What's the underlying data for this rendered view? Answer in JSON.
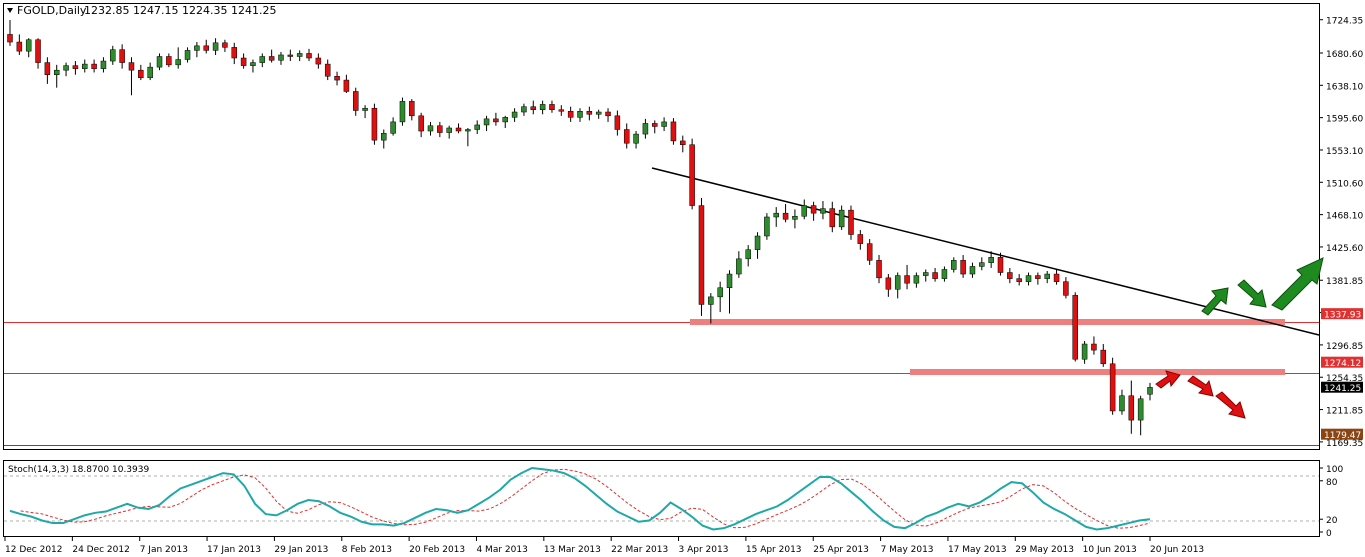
{
  "chart_data": {
    "type": "candlestick",
    "header": {
      "symbol": "FGOLD,Daily",
      "ohlc": "1232.85 1247.15 1224.35 1241.25"
    },
    "price_axis": {
      "range": [
        1160,
        1745
      ],
      "ticks": [
        "1724.35",
        "1680.60",
        "1638.10",
        "1595.60",
        "1553.10",
        "1510.60",
        "1468.10",
        "1425.60",
        "1381.85",
        "1339.35",
        "1296.85",
        "1254.35",
        "1211.85",
        "1169.35"
      ]
    },
    "levels": [
      {
        "label": "1337.93",
        "value": 1337.93,
        "color": "#e03030"
      },
      {
        "label": "1274.12",
        "value": 1274.12,
        "color": "#e03030"
      },
      {
        "label": "1179.47",
        "value": 1179.47,
        "color": "#8b4513"
      }
    ],
    "last_price": {
      "label": "1241.25",
      "value": 1241.25
    },
    "x_axis_labels": [
      "12 Dec 2012",
      "24 Dec 2012",
      "7 Jan 2013",
      "17 Jan 2013",
      "29 Jan 2013",
      "8 Feb 2013",
      "20 Feb 2013",
      "4 Mar 2013",
      "13 Mar 2013",
      "22 Mar 2013",
      "3 Apr 2013",
      "15 Apr 2013",
      "25 Apr 2013",
      "7 May 2013",
      "17 May 2013",
      "29 May 2013",
      "10 Jun 2013",
      "20 Jun 2013"
    ],
    "candles": [
      [
        1705,
        1724,
        1690,
        1695
      ],
      [
        1695,
        1705,
        1678,
        1683
      ],
      [
        1683,
        1700,
        1675,
        1698
      ],
      [
        1698,
        1700,
        1660,
        1668
      ],
      [
        1668,
        1675,
        1640,
        1652
      ],
      [
        1652,
        1665,
        1635,
        1658
      ],
      [
        1658,
        1668,
        1650,
        1664
      ],
      [
        1664,
        1670,
        1652,
        1660
      ],
      [
        1660,
        1672,
        1655,
        1666
      ],
      [
        1666,
        1672,
        1655,
        1660
      ],
      [
        1660,
        1675,
        1655,
        1670
      ],
      [
        1670,
        1690,
        1665,
        1685
      ],
      [
        1685,
        1692,
        1660,
        1668
      ],
      [
        1668,
        1675,
        1625,
        1658
      ],
      [
        1658,
        1665,
        1645,
        1648
      ],
      [
        1648,
        1668,
        1645,
        1662
      ],
      [
        1662,
        1680,
        1658,
        1676
      ],
      [
        1676,
        1680,
        1662,
        1665
      ],
      [
        1665,
        1688,
        1660,
        1672
      ],
      [
        1672,
        1688,
        1668,
        1684
      ],
      [
        1684,
        1695,
        1675,
        1690
      ],
      [
        1690,
        1698,
        1680,
        1684
      ],
      [
        1684,
        1700,
        1678,
        1694
      ],
      [
        1694,
        1698,
        1682,
        1688
      ],
      [
        1688,
        1694,
        1666,
        1674
      ],
      [
        1674,
        1680,
        1660,
        1664
      ],
      [
        1664,
        1672,
        1655,
        1668
      ],
      [
        1668,
        1680,
        1662,
        1676
      ],
      [
        1676,
        1685,
        1668,
        1671
      ],
      [
        1671,
        1682,
        1665,
        1678
      ],
      [
        1678,
        1685,
        1670,
        1676
      ],
      [
        1676,
        1684,
        1670,
        1680
      ],
      [
        1680,
        1686,
        1670,
        1674
      ],
      [
        1674,
        1680,
        1660,
        1666
      ],
      [
        1666,
        1672,
        1645,
        1650
      ],
      [
        1650,
        1656,
        1638,
        1645
      ],
      [
        1645,
        1652,
        1628,
        1630
      ],
      [
        1630,
        1635,
        1598,
        1605
      ],
      [
        1605,
        1612,
        1595,
        1608
      ],
      [
        1608,
        1614,
        1560,
        1566
      ],
      [
        1566,
        1580,
        1555,
        1575
      ],
      [
        1575,
        1596,
        1572,
        1590
      ],
      [
        1590,
        1622,
        1585,
        1617
      ],
      [
        1617,
        1620,
        1592,
        1598
      ],
      [
        1598,
        1602,
        1570,
        1578
      ],
      [
        1578,
        1590,
        1572,
        1585
      ],
      [
        1585,
        1590,
        1570,
        1576
      ],
      [
        1576,
        1585,
        1568,
        1582
      ],
      [
        1582,
        1588,
        1575,
        1578
      ],
      [
        1578,
        1582,
        1558,
        1580
      ],
      [
        1580,
        1592,
        1574,
        1586
      ],
      [
        1586,
        1598,
        1578,
        1594
      ],
      [
        1594,
        1602,
        1585,
        1590
      ],
      [
        1590,
        1598,
        1582,
        1596
      ],
      [
        1596,
        1608,
        1590,
        1603
      ],
      [
        1603,
        1614,
        1598,
        1610
      ],
      [
        1610,
        1618,
        1600,
        1606
      ],
      [
        1606,
        1618,
        1600,
        1613
      ],
      [
        1613,
        1618,
        1602,
        1606
      ],
      [
        1606,
        1612,
        1598,
        1604
      ],
      [
        1604,
        1610,
        1590,
        1596
      ],
      [
        1596,
        1608,
        1590,
        1604
      ],
      [
        1604,
        1610,
        1592,
        1600
      ],
      [
        1600,
        1606,
        1594,
        1603
      ],
      [
        1603,
        1608,
        1590,
        1598
      ],
      [
        1598,
        1605,
        1572,
        1580
      ],
      [
        1580,
        1588,
        1555,
        1562
      ],
      [
        1562,
        1578,
        1555,
        1574
      ],
      [
        1574,
        1594,
        1568,
        1588
      ],
      [
        1588,
        1592,
        1575,
        1584
      ],
      [
        1584,
        1596,
        1578,
        1590
      ],
      [
        1590,
        1595,
        1560,
        1565
      ],
      [
        1565,
        1572,
        1550,
        1560
      ],
      [
        1560,
        1568,
        1475,
        1480
      ],
      [
        1480,
        1490,
        1335,
        1350
      ],
      [
        1350,
        1365,
        1325,
        1360
      ],
      [
        1360,
        1380,
        1340,
        1372
      ],
      [
        1372,
        1395,
        1338,
        1390
      ],
      [
        1390,
        1420,
        1385,
        1410
      ],
      [
        1410,
        1428,
        1400,
        1422
      ],
      [
        1422,
        1445,
        1410,
        1440
      ],
      [
        1440,
        1470,
        1435,
        1465
      ],
      [
        1465,
        1478,
        1452,
        1470
      ],
      [
        1470,
        1482,
        1458,
        1462
      ],
      [
        1462,
        1475,
        1450,
        1466
      ],
      [
        1466,
        1488,
        1462,
        1480
      ],
      [
        1480,
        1485,
        1460,
        1470
      ],
      [
        1470,
        1486,
        1462,
        1476
      ],
      [
        1476,
        1485,
        1445,
        1452
      ],
      [
        1452,
        1480,
        1448,
        1474
      ],
      [
        1474,
        1480,
        1435,
        1442
      ],
      [
        1442,
        1448,
        1422,
        1430
      ],
      [
        1430,
        1436,
        1402,
        1408
      ],
      [
        1408,
        1415,
        1378,
        1385
      ],
      [
        1385,
        1390,
        1360,
        1370
      ],
      [
        1370,
        1392,
        1358,
        1388
      ],
      [
        1388,
        1402,
        1370,
        1378
      ],
      [
        1378,
        1392,
        1372,
        1388
      ],
      [
        1388,
        1396,
        1380,
        1392
      ],
      [
        1392,
        1398,
        1380,
        1384
      ],
      [
        1384,
        1400,
        1380,
        1396
      ],
      [
        1396,
        1412,
        1392,
        1408
      ],
      [
        1408,
        1415,
        1385,
        1390
      ],
      [
        1390,
        1405,
        1385,
        1400
      ],
      [
        1400,
        1412,
        1395,
        1405
      ],
      [
        1405,
        1420,
        1398,
        1412
      ],
      [
        1412,
        1418,
        1388,
        1392
      ],
      [
        1392,
        1398,
        1378,
        1384
      ],
      [
        1384,
        1390,
        1375,
        1380
      ],
      [
        1380,
        1392,
        1375,
        1388
      ],
      [
        1388,
        1392,
        1376,
        1384
      ],
      [
        1384,
        1394,
        1378,
        1390
      ],
      [
        1390,
        1396,
        1376,
        1380
      ],
      [
        1380,
        1386,
        1358,
        1362
      ],
      [
        1362,
        1366,
        1275,
        1278
      ],
      [
        1278,
        1302,
        1272,
        1298
      ],
      [
        1298,
        1308,
        1284,
        1290
      ],
      [
        1290,
        1298,
        1268,
        1272
      ],
      [
        1272,
        1280,
        1205,
        1210
      ],
      [
        1210,
        1238,
        1205,
        1230
      ],
      [
        1230,
        1250,
        1180,
        1198
      ],
      [
        1198,
        1230,
        1178,
        1226
      ],
      [
        1232,
        1247,
        1224,
        1241
      ]
    ],
    "stochastic": {
      "label": "Stoch(14,3,3) 18.8700 10.3939",
      "range": [
        0,
        100
      ],
      "ticks": [
        "100",
        "80",
        "20",
        "0"
      ],
      "k": [
        33,
        28,
        24,
        18,
        14,
        14,
        20,
        26,
        30,
        32,
        38,
        44,
        38,
        36,
        42,
        56,
        68,
        74,
        80,
        86,
        92,
        90,
        72,
        44,
        28,
        26,
        34,
        44,
        50,
        48,
        40,
        30,
        24,
        16,
        12,
        12,
        10,
        14,
        22,
        30,
        36,
        34,
        30,
        34,
        44,
        54,
        66,
        82,
        92,
        100,
        98,
        96,
        92,
        84,
        72,
        58,
        44,
        32,
        24,
        16,
        18,
        30,
        46,
        36,
        24,
        10,
        4,
        6,
        12,
        20,
        28,
        34,
        40,
        50,
        62,
        74,
        86,
        86,
        76,
        62,
        48,
        32,
        18,
        8,
        6,
        14,
        24,
        30,
        38,
        44,
        40,
        46,
        56,
        68,
        78,
        76,
        62,
        46,
        36,
        28,
        18,
        8,
        4,
        6,
        10,
        14,
        18,
        20
      ]
    }
  }
}
